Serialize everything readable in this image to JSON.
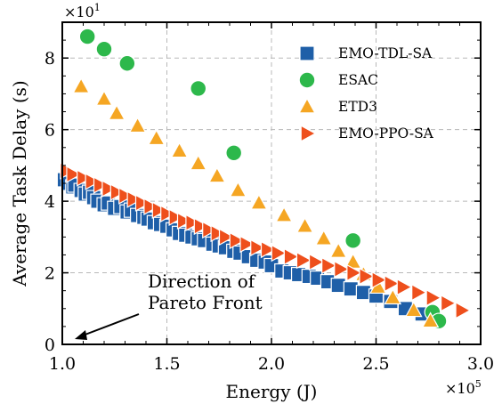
{
  "chart_data": {
    "type": "scatter",
    "xlabel": "Energy (J)",
    "ylabel": "Average Task Delay (s)",
    "x_multiplier": "×10",
    "x_multiplier_exp": "5",
    "y_multiplier": "×10",
    "y_multiplier_exp": "1",
    "xlim": [
      1.0,
      3.0
    ],
    "ylim": [
      0,
      9
    ],
    "x_ticks": [
      1.0,
      1.5,
      2.0,
      2.5,
      3.0
    ],
    "x_tick_labels": [
      "1.0",
      "1.5",
      "2.0",
      "2.5",
      "3.0"
    ],
    "y_ticks": [
      0,
      2,
      4,
      6,
      8
    ],
    "y_tick_labels": [
      "0",
      "2",
      "4",
      "6",
      "8"
    ],
    "grid": true,
    "legend_position": "top-right",
    "annotation": {
      "lines": [
        "Direction of",
        "Pareto Front"
      ]
    },
    "series": [
      {
        "name": "EMO-TDL-SA",
        "marker": "square",
        "color": "#1f5fa8",
        "x": [
          1.01,
          1.03,
          1.05,
          1.06,
          1.09,
          1.11,
          1.13,
          1.15,
          1.17,
          1.2,
          1.22,
          1.25,
          1.28,
          1.31,
          1.33,
          1.36,
          1.39,
          1.41,
          1.44,
          1.47,
          1.5,
          1.53,
          1.56,
          1.59,
          1.62,
          1.65,
          1.68,
          1.72,
          1.75,
          1.78,
          1.82,
          1.85,
          1.89,
          1.93,
          1.97,
          2.0,
          2.05,
          2.09,
          2.13,
          2.18,
          2.22,
          2.27,
          2.32,
          2.38,
          2.44,
          2.5,
          2.57,
          2.64,
          2.72
        ],
        "y": [
          4.6,
          4.5,
          4.4,
          4.45,
          4.3,
          4.2,
          4.25,
          4.1,
          4.0,
          3.9,
          3.95,
          3.8,
          3.85,
          3.7,
          3.75,
          3.6,
          3.55,
          3.5,
          3.4,
          3.35,
          3.3,
          3.2,
          3.1,
          3.05,
          3.0,
          2.95,
          2.9,
          2.8,
          2.75,
          2.7,
          2.6,
          2.55,
          2.45,
          2.35,
          2.3,
          2.2,
          2.05,
          2.0,
          1.95,
          1.9,
          1.85,
          1.75,
          1.65,
          1.55,
          1.45,
          1.35,
          1.2,
          1.0,
          0.85
        ]
      },
      {
        "name": "ESAC",
        "marker": "circle",
        "color": "#2db84b",
        "x": [
          1.12,
          1.2,
          1.31,
          1.65,
          1.82,
          2.39,
          2.77,
          2.8
        ],
        "y": [
          8.6,
          8.25,
          7.85,
          7.15,
          5.35,
          2.9,
          0.9,
          0.65
        ]
      },
      {
        "name": "ETD3",
        "marker": "triangle-up",
        "color": "#f5a623",
        "x": [
          1.09,
          1.2,
          1.26,
          1.36,
          1.45,
          1.56,
          1.65,
          1.74,
          1.84,
          1.94,
          2.06,
          2.16,
          2.25,
          2.32,
          2.39,
          2.44,
          2.51,
          2.58,
          2.68,
          2.76
        ],
        "y": [
          7.2,
          6.85,
          6.45,
          6.1,
          5.75,
          5.4,
          5.05,
          4.7,
          4.3,
          3.95,
          3.6,
          3.3,
          2.95,
          2.6,
          2.3,
          1.95,
          1.6,
          1.3,
          0.95,
          0.65
        ]
      },
      {
        "name": "EMO-PPO-SA",
        "marker": "triangle-right",
        "color": "#ee4f1c",
        "x": [
          1.02,
          1.05,
          1.1,
          1.14,
          1.18,
          1.22,
          1.26,
          1.3,
          1.34,
          1.38,
          1.42,
          1.46,
          1.5,
          1.54,
          1.58,
          1.62,
          1.66,
          1.7,
          1.74,
          1.78,
          1.83,
          1.88,
          1.93,
          1.98,
          2.03,
          2.09,
          2.15,
          2.21,
          2.27,
          2.33,
          2.39,
          2.45,
          2.51,
          2.57,
          2.63,
          2.7,
          2.77,
          2.84,
          2.91
        ],
        "y": [
          4.85,
          4.75,
          4.65,
          4.55,
          4.45,
          4.35,
          4.25,
          4.15,
          4.05,
          3.95,
          3.85,
          3.75,
          3.65,
          3.55,
          3.45,
          3.4,
          3.3,
          3.2,
          3.1,
          3.0,
          2.9,
          2.8,
          2.7,
          2.65,
          2.55,
          2.45,
          2.35,
          2.3,
          2.2,
          2.1,
          2.0,
          1.9,
          1.8,
          1.7,
          1.6,
          1.45,
          1.3,
          1.15,
          0.95
        ]
      }
    ]
  }
}
